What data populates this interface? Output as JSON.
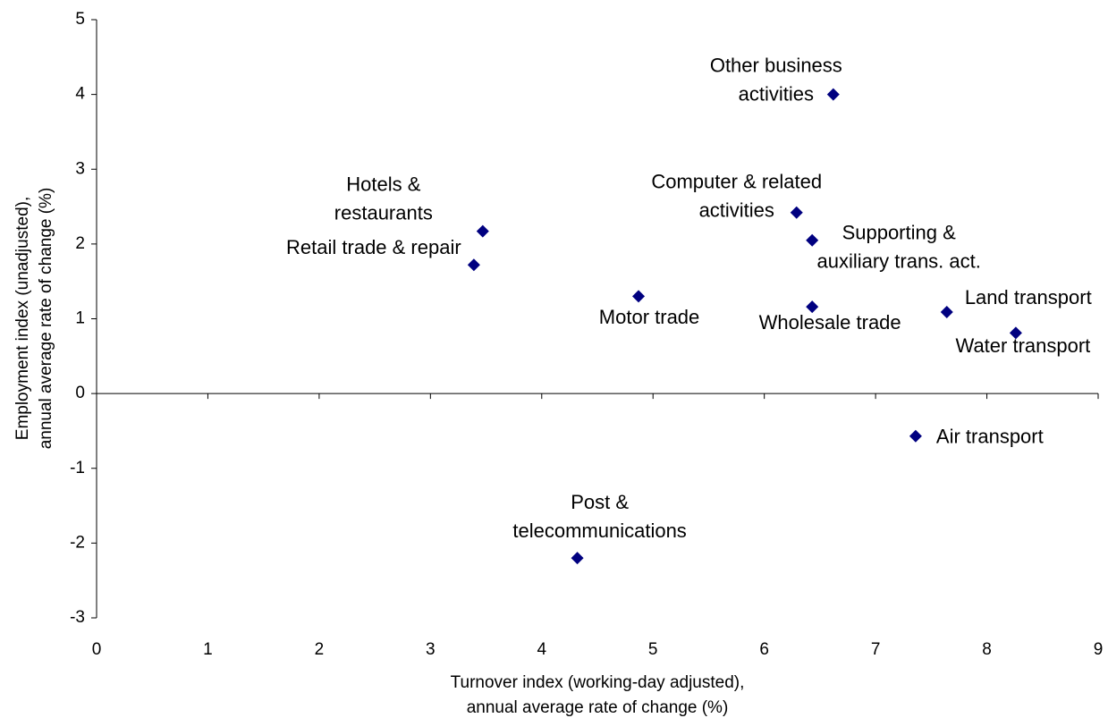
{
  "chart_data": {
    "type": "scatter",
    "x_label": [
      "Turnover index (working-day adjusted),",
      "annual average rate of change (%)"
    ],
    "y_label": [
      "Employment index (unadjusted),",
      "annual average rate of change (%)"
    ],
    "color": "#000080",
    "labels": [
      [
        "Other business",
        "activities"
      ],
      [
        "Computer & related",
        "activities"
      ],
      [
        "Supporting &",
        "auxiliary trans. act."
      ],
      [
        "Hotels &",
        "restaurants"
      ],
      [
        "Retail trade & repair"
      ],
      [
        "Motor trade"
      ],
      [
        "Wholesale trade"
      ],
      [
        "Land transport"
      ],
      [
        "Water transport"
      ],
      [
        "Air transport"
      ],
      [
        "Post &",
        "telecommunications"
      ]
    ],
    "x": [
      6.62,
      6.29,
      6.43,
      3.47,
      3.39,
      4.87,
      6.43,
      7.64,
      8.26,
      7.36,
      4.32
    ],
    "values": [
      4.0,
      2.42,
      2.05,
      2.17,
      1.72,
      1.3,
      1.16,
      1.09,
      0.81,
      -0.57,
      -2.2
    ],
    "xlim": [
      0,
      9
    ],
    "xticks": [
      0,
      1,
      2,
      3,
      4,
      5,
      6,
      7,
      8,
      9
    ],
    "ylim": [
      -3,
      5
    ],
    "yticks": [
      -3,
      -2,
      -1,
      0,
      1,
      2,
      3,
      4,
      5
    ],
    "grid": false
  }
}
